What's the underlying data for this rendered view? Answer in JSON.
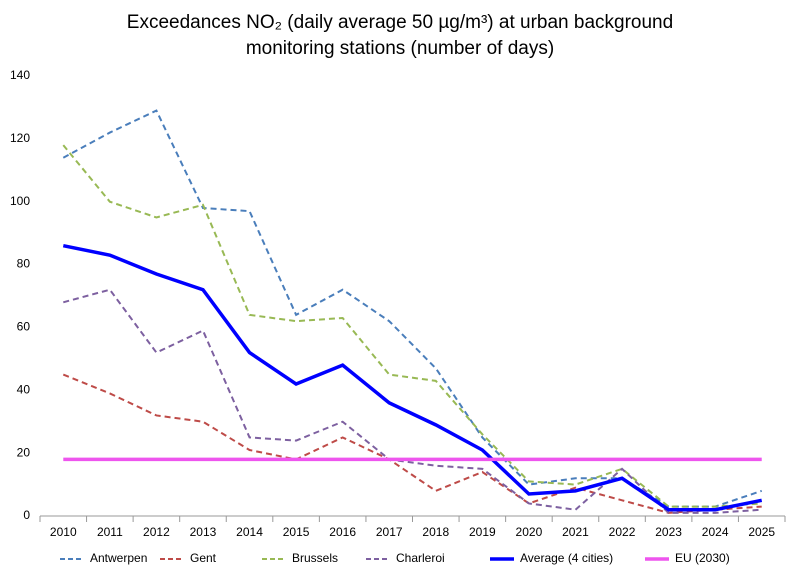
{
  "chart_data": {
    "type": "line",
    "title": "Exceedances NO₂ (daily average 50 µg/m³) at urban background monitoring stations (number of days)",
    "categories": [
      "2010",
      "2011",
      "2012",
      "2013",
      "2014",
      "2015",
      "2016",
      "2017",
      "2018",
      "2019",
      "2020",
      "2021",
      "2022",
      "2023",
      "2024",
      "2025"
    ],
    "series": [
      {
        "name": "Antwerpen",
        "color": "#4a7ebb",
        "dashed": true,
        "values": [
          114,
          122,
          129,
          98,
          97,
          64,
          72,
          62,
          47,
          25,
          10,
          12,
          12,
          3,
          3,
          8
        ]
      },
      {
        "name": "Gent",
        "color": "#be4b48",
        "dashed": true,
        "values": [
          45,
          39,
          32,
          30,
          21,
          18,
          25,
          18,
          8,
          14,
          4,
          9,
          5,
          1,
          2,
          3
        ]
      },
      {
        "name": "Brussels",
        "color": "#98b954",
        "dashed": true,
        "values": [
          118,
          100,
          95,
          99,
          64,
          62,
          63,
          45,
          43,
          26,
          11,
          10,
          15,
          3,
          3,
          4
        ]
      },
      {
        "name": "Charleroi",
        "color": "#7d60a0",
        "dashed": true,
        "values": [
          68,
          72,
          52,
          59,
          25,
          24,
          30,
          18,
          16,
          15,
          4,
          2,
          15,
          1,
          1,
          2
        ]
      },
      {
        "name": "Average (4 cities)",
        "color": "#0000ff",
        "dashed": false,
        "values": [
          86,
          83,
          77,
          72,
          52,
          42,
          48,
          36,
          29,
          21,
          7,
          8,
          12,
          2,
          2,
          5
        ]
      },
      {
        "name": "EU (2030)",
        "color": "#ee55ee",
        "dashed": false,
        "values": [
          18,
          18,
          18,
          18,
          18,
          18,
          18,
          18,
          18,
          18,
          18,
          18,
          18,
          18,
          18,
          18
        ]
      }
    ],
    "ylim": [
      0,
      140
    ],
    "yticks": [
      0,
      20,
      40,
      60,
      80,
      100,
      120,
      140
    ],
    "grid": false,
    "legend": "bottom"
  }
}
